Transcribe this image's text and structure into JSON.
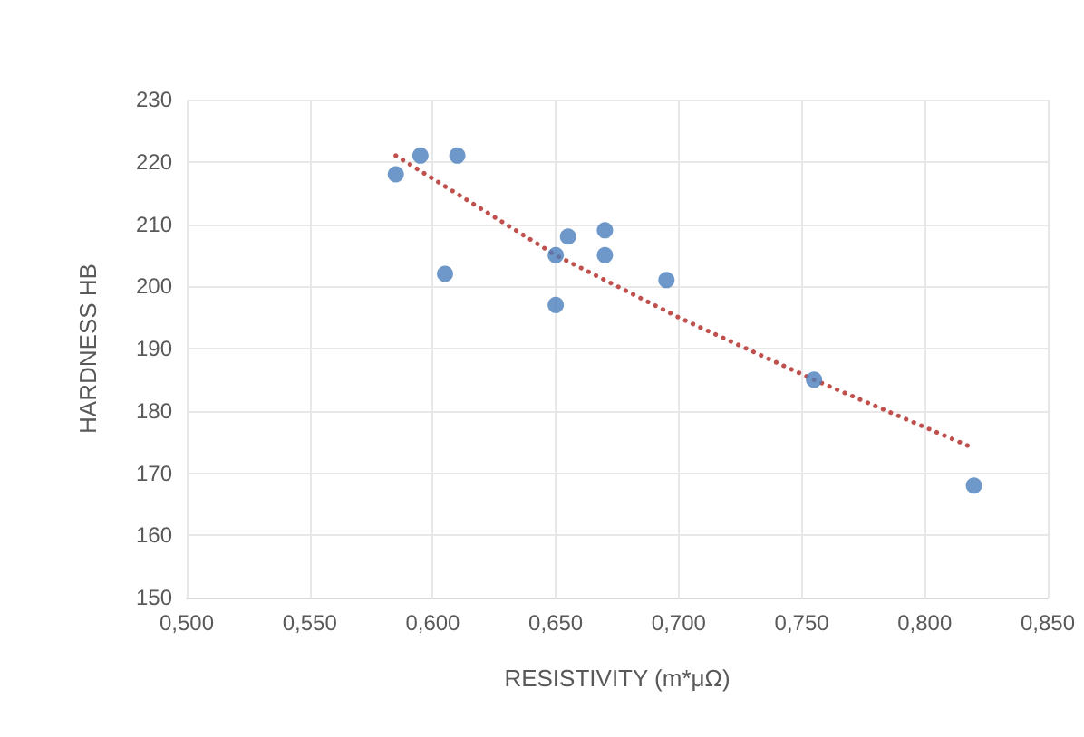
{
  "chart_data": {
    "type": "scatter",
    "xlabel": "RESISTIVITY (m*μΩ)",
    "ylabel": "HARDNESS HB",
    "series": [
      {
        "color": "#4a7ebb",
        "marker": "circle",
        "x": [
          0.585,
          0.595,
          0.61,
          0.605,
          0.65,
          0.65,
          0.655,
          0.67,
          0.67,
          0.695,
          0.755,
          0.82
        ],
        "values": [
          218,
          221,
          221,
          202,
          205,
          197,
          208,
          209,
          205,
          201,
          185,
          168
        ]
      },
      {
        "type": "line",
        "color": "#c0504d",
        "line_style": "dotted",
        "marker": "none",
        "x": [
          0.585,
          0.65,
          0.7,
          0.755,
          0.82
        ],
        "values": [
          221,
          205,
          195,
          185,
          174
        ]
      }
    ],
    "xlim": [
      0.5,
      0.85
    ],
    "xticks": [
      {
        "value": 0.5,
        "label": "0,500"
      },
      {
        "value": 0.55,
        "label": "0,550"
      },
      {
        "value": 0.6,
        "label": "0,600"
      },
      {
        "value": 0.65,
        "label": "0,650"
      },
      {
        "value": 0.7,
        "label": "0,700"
      },
      {
        "value": 0.75,
        "label": "0,750"
      },
      {
        "value": 0.8,
        "label": "0,800"
      },
      {
        "value": 0.85,
        "label": "0,850"
      }
    ],
    "ylim": [
      150,
      230
    ],
    "yticks": [
      150,
      160,
      170,
      180,
      190,
      200,
      210,
      220,
      230
    ],
    "grid": true
  }
}
